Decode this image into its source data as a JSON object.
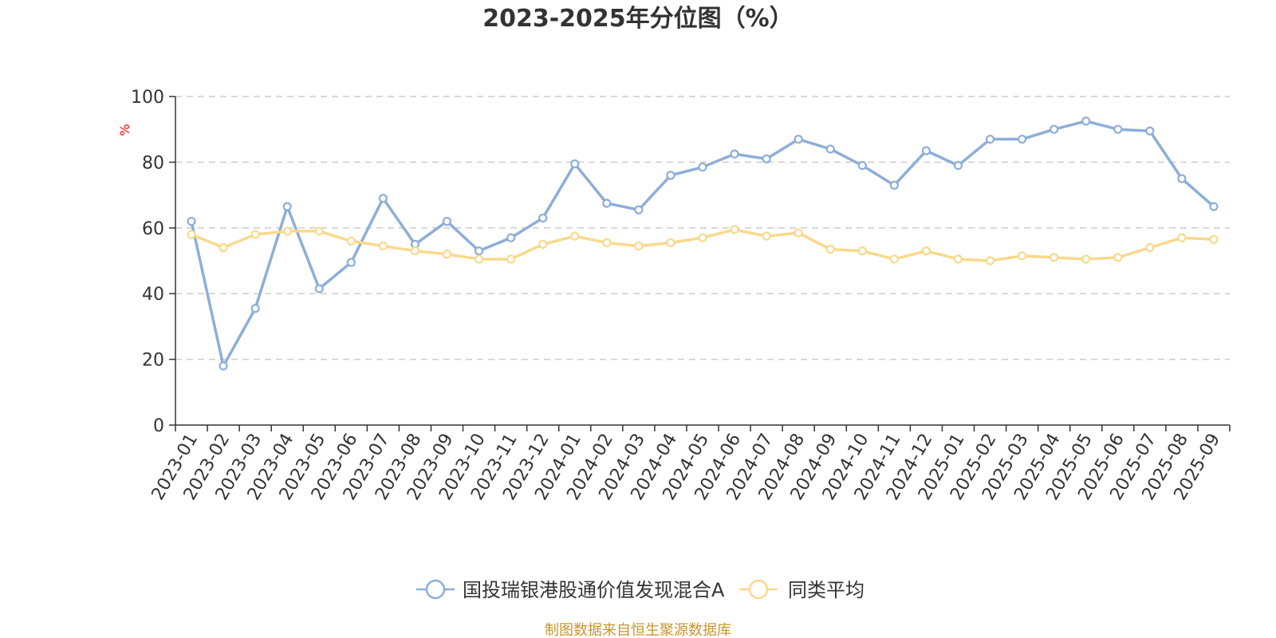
{
  "chart_data": {
    "type": "line",
    "title": "2023-2025年分位图（%）",
    "ylabel": "%",
    "ylim": [
      0,
      100
    ],
    "yticks": [
      "0",
      "20",
      "40",
      "60",
      "80",
      "100"
    ],
    "grid": true,
    "legend_position": "bottom",
    "categories": [
      "2023-01",
      "2023-02",
      "2023-03",
      "2023-04",
      "2023-05",
      "2023-06",
      "2023-07",
      "2023-08",
      "2023-09",
      "2023-10",
      "2023-11",
      "2023-12",
      "2024-01",
      "2024-02",
      "2024-03",
      "2024-04",
      "2024-05",
      "2024-06",
      "2024-07",
      "2024-08",
      "2024-09",
      "2024-10",
      "2024-11",
      "2024-12",
      "2025-01",
      "2025-02",
      "2025-03",
      "2025-04",
      "2025-05",
      "2025-06",
      "2025-07",
      "2025-08",
      "2025-09"
    ],
    "series": [
      {
        "name": "国投瑞银港股通价值发现混合A",
        "color": "#8eaed8",
        "values": [
          62,
          18,
          35.5,
          66.5,
          41.5,
          49.5,
          69,
          55,
          62,
          53,
          57,
          63,
          79.5,
          67.5,
          65.5,
          76,
          78.5,
          82.5,
          81,
          87,
          84,
          79,
          73,
          83.5,
          79,
          87,
          87,
          90,
          92.5,
          90,
          89.5,
          75,
          66.5
        ]
      },
      {
        "name": "同类平均",
        "color": "#f9d98c",
        "values": [
          58,
          54,
          58,
          59,
          59,
          56,
          54.5,
          53,
          52,
          50.5,
          50.5,
          55,
          57.5,
          55.5,
          54.5,
          55.5,
          57,
          59.5,
          57.5,
          58.5,
          53.5,
          53,
          50.5,
          53,
          50.5,
          50,
          51.5,
          51,
          50.5,
          51,
          54,
          57,
          56.5
        ]
      }
    ]
  },
  "source_note": "制图数据来自恒生聚源数据库"
}
